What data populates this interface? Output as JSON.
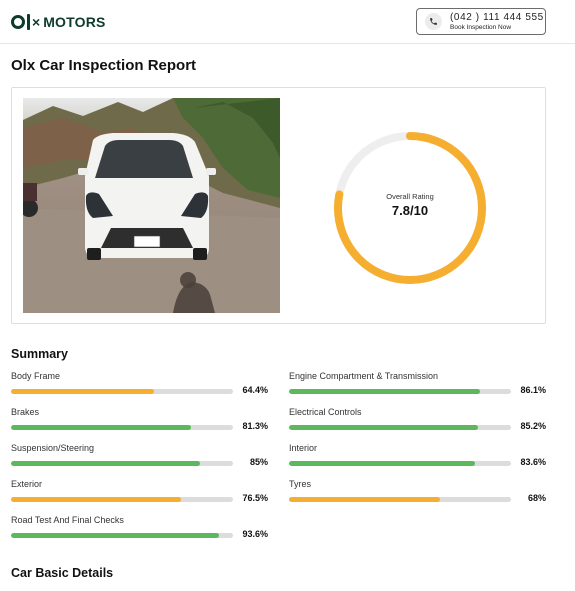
{
  "header": {
    "brand": "MOTORS",
    "logo_mark": "olx",
    "phone": "(042 ) 111 444 555",
    "book_label": "Book Inspection Now",
    "phone_icon": "phone-icon"
  },
  "page_title": "Olx Car Inspection Report",
  "rating": {
    "label": "Overall Rating",
    "value": "7.8/10",
    "score": 7.8,
    "max": 10,
    "color": "#f5ae2f"
  },
  "summary": {
    "title": "Summary",
    "items": [
      {
        "label": "Body Frame",
        "value": "64.4%",
        "percent": 64.4,
        "color": "#f5ae2f"
      },
      {
        "label": "Engine Compartment & Transmission",
        "value": "86.1%",
        "percent": 86.1,
        "color": "#5cb85c"
      },
      {
        "label": "Brakes",
        "value": "81.3%",
        "percent": 81.3,
        "color": "#5cb85c"
      },
      {
        "label": "Electrical Controls",
        "value": "85.2%",
        "percent": 85.2,
        "color": "#5cb85c"
      },
      {
        "label": "Suspension/Steering",
        "value": "85%",
        "percent": 85,
        "color": "#5cb85c"
      },
      {
        "label": "Interior",
        "value": "83.6%",
        "percent": 83.6,
        "color": "#5cb85c"
      },
      {
        "label": "Exterior",
        "value": "76.5%",
        "percent": 76.5,
        "color": "#f5ae2f"
      },
      {
        "label": "Tyres",
        "value": "68%",
        "percent": 68,
        "color": "#f5ae2f"
      },
      {
        "label": "Road Test And Final Checks",
        "value": "93.6%",
        "percent": 93.6,
        "color": "#5cb85c"
      }
    ]
  },
  "basic_details": {
    "title": "Car Basic Details"
  }
}
